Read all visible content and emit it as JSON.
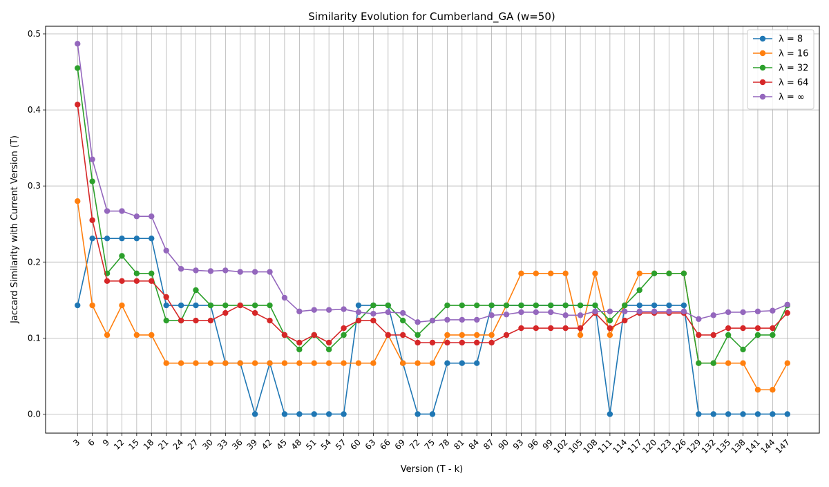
{
  "chart_data": {
    "type": "line",
    "title": "Similarity Evolution for Cumberland_GA (w=50)",
    "xlabel": "Version (T - k)",
    "ylabel": "Jaccard Similarity with Current Version (T)",
    "ylim": [
      -0.025,
      0.51
    ],
    "yticks": [
      0.0,
      0.1,
      0.2,
      0.3,
      0.4,
      0.5
    ],
    "ytick_labels": [
      "0.0",
      "0.1",
      "0.2",
      "0.3",
      "0.4",
      "0.5"
    ],
    "grid": true,
    "legend": "top-right",
    "x": [
      3,
      6,
      9,
      12,
      15,
      18,
      21,
      24,
      27,
      30,
      33,
      36,
      39,
      42,
      45,
      48,
      51,
      54,
      57,
      60,
      63,
      66,
      69,
      72,
      75,
      78,
      81,
      84,
      87,
      90,
      93,
      96,
      99,
      102,
      105,
      108,
      111,
      114,
      117,
      120,
      123,
      126,
      129,
      132,
      135,
      138,
      141,
      144,
      147
    ],
    "series": [
      {
        "name": "λ = 8",
        "color": "#1f77b4",
        "values": [
          0.143,
          0.231,
          0.231,
          0.231,
          0.231,
          0.231,
          0.143,
          0.143,
          0.143,
          0.143,
          0.067,
          0.067,
          0.0,
          0.067,
          0.0,
          0.0,
          0.0,
          0.0,
          0.0,
          0.143,
          0.143,
          0.143,
          0.067,
          0.0,
          0.0,
          0.067,
          0.067,
          0.067,
          0.143,
          0.143,
          0.143,
          0.143,
          0.143,
          0.143,
          0.143,
          0.143,
          0.0,
          0.143,
          0.143,
          0.143,
          0.143,
          0.143,
          0.0,
          0.0,
          0.0,
          0.0,
          0.0,
          0.0,
          0.0
        ]
      },
      {
        "name": "λ = 16",
        "color": "#ff7f0e",
        "values": [
          0.28,
          0.143,
          0.104,
          0.143,
          0.104,
          0.104,
          0.067,
          0.067,
          0.067,
          0.067,
          0.067,
          0.067,
          0.067,
          0.067,
          0.067,
          0.067,
          0.067,
          0.067,
          0.067,
          0.067,
          0.067,
          0.104,
          0.067,
          0.067,
          0.067,
          0.104,
          0.104,
          0.104,
          0.104,
          0.143,
          0.185,
          0.185,
          0.185,
          0.185,
          0.104,
          0.185,
          0.104,
          0.143,
          0.185,
          0.185,
          0.185,
          0.185,
          0.067,
          0.067,
          0.067,
          0.067,
          0.032,
          0.032,
          0.067
        ]
      },
      {
        "name": "λ = 32",
        "color": "#2ca02c",
        "values": [
          0.455,
          0.306,
          0.185,
          0.208,
          0.185,
          0.185,
          0.123,
          0.123,
          0.163,
          0.143,
          0.143,
          0.143,
          0.143,
          0.143,
          0.104,
          0.085,
          0.104,
          0.085,
          0.104,
          0.123,
          0.143,
          0.143,
          0.123,
          0.104,
          0.123,
          0.143,
          0.143,
          0.143,
          0.143,
          0.143,
          0.143,
          0.143,
          0.143,
          0.143,
          0.143,
          0.143,
          0.123,
          0.143,
          0.163,
          0.185,
          0.185,
          0.185,
          0.067,
          0.067,
          0.104,
          0.085,
          0.104,
          0.104,
          0.143
        ]
      },
      {
        "name": "λ = 64",
        "color": "#d62728",
        "values": [
          0.407,
          0.255,
          0.175,
          0.175,
          0.175,
          0.175,
          0.154,
          0.123,
          0.123,
          0.123,
          0.133,
          0.143,
          0.133,
          0.123,
          0.104,
          0.094,
          0.104,
          0.094,
          0.113,
          0.123,
          0.123,
          0.104,
          0.104,
          0.094,
          0.094,
          0.094,
          0.094,
          0.094,
          0.094,
          0.104,
          0.113,
          0.113,
          0.113,
          0.113,
          0.113,
          0.133,
          0.113,
          0.123,
          0.133,
          0.133,
          0.133,
          0.133,
          0.104,
          0.104,
          0.113,
          0.113,
          0.113,
          0.113,
          0.133
        ]
      },
      {
        "name": "λ = ∞",
        "color": "#9467bd",
        "values": [
          0.487,
          0.335,
          0.267,
          0.267,
          0.26,
          0.26,
          0.215,
          0.191,
          0.189,
          0.188,
          0.189,
          0.187,
          0.187,
          0.187,
          0.153,
          0.135,
          0.137,
          0.137,
          0.138,
          0.134,
          0.132,
          0.134,
          0.133,
          0.121,
          0.123,
          0.124,
          0.124,
          0.124,
          0.13,
          0.131,
          0.134,
          0.134,
          0.134,
          0.13,
          0.13,
          0.135,
          0.135,
          0.135,
          0.135,
          0.135,
          0.135,
          0.135,
          0.125,
          0.13,
          0.134,
          0.134,
          0.135,
          0.136,
          0.144
        ]
      }
    ]
  }
}
